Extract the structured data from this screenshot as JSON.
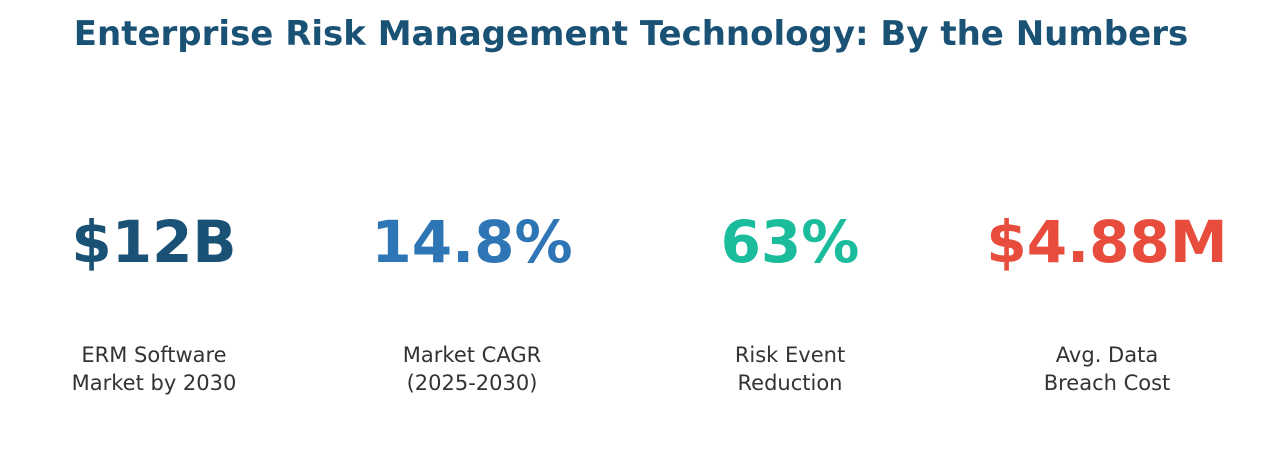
{
  "chart_data": {
    "type": "table",
    "title": "Enterprise Risk Management Technology: By the Numbers",
    "stats": [
      {
        "value": "$12B",
        "label": "ERM Software\nMarket by 2030",
        "color": "#1a5276"
      },
      {
        "value": "14.8%",
        "label": "Market CAGR\n(2025-2030)",
        "color": "#2e75b6"
      },
      {
        "value": "63%",
        "label": "Risk Event\nReduction",
        "color": "#1abc9c"
      },
      {
        "value": "$4.88M",
        "label": "Avg. Data\nBreach Cost",
        "color": "#e74c3c"
      }
    ]
  }
}
